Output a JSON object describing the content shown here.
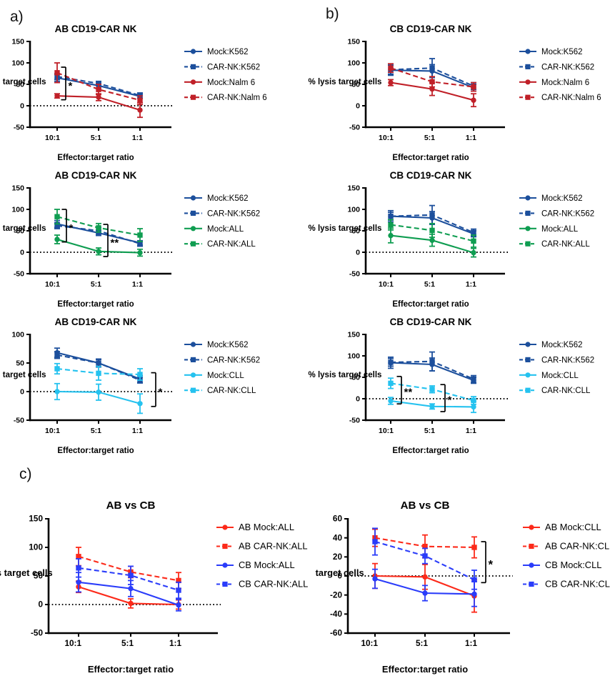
{
  "panels": [
    {
      "id": "a",
      "label": "a)"
    },
    {
      "id": "b",
      "label": "b)"
    },
    {
      "id": "c",
      "label": "c)"
    }
  ],
  "colors": {
    "navy": "#1C4F9C",
    "crimson": "#C02028",
    "green": "#0F9D51",
    "cyan": "#25C2EF",
    "red": "#FC2A1A",
    "blue": "#2A3CFA",
    "axis": "#000000"
  },
  "chart_data": [
    {
      "id": "a1",
      "type": "line",
      "title": "AB CD19-CAR NK",
      "xlabel": "Effector:target ratio",
      "ylabel": "% lysis target cells",
      "categories": [
        "10:1",
        "5:1",
        "1:1"
      ],
      "ylim": [
        -50,
        150
      ],
      "yticks": [
        150,
        100,
        50,
        0,
        -50
      ],
      "zero_line": true,
      "legend_position": "right",
      "series": [
        {
          "name": "Mock:K562",
          "color": "navy",
          "style": "solid",
          "marker": "circle",
          "values": [
            65,
            47,
            22
          ],
          "errors": [
            8,
            6,
            5
          ]
        },
        {
          "name": "CAR-NK:K562",
          "color": "navy",
          "style": "dashed",
          "marker": "square",
          "values": [
            68,
            52,
            24
          ],
          "errors": [
            7,
            5,
            6
          ]
        },
        {
          "name": "Mock:Nalm 6",
          "color": "crimson",
          "style": "solid",
          "marker": "circle",
          "values": [
            23,
            20,
            -10
          ],
          "errors": [
            5,
            8,
            17
          ]
        },
        {
          "name": "CAR-NK:Nalm 6",
          "color": "crimson",
          "style": "dashed",
          "marker": "square",
          "values": [
            77,
            38,
            13
          ],
          "errors": [
            23,
            12,
            10
          ]
        }
      ],
      "significance": [
        {
          "label": "*",
          "cat": 0,
          "dx": 12,
          "top": 90,
          "bottom": 14
        }
      ]
    },
    {
      "id": "a2",
      "type": "line",
      "title": "AB CD19-CAR NK",
      "xlabel": "Effector:target ratio",
      "ylabel": "% lysis target cells",
      "categories": [
        "10:1",
        "5:1",
        "1:1"
      ],
      "ylim": [
        -50,
        150
      ],
      "yticks": [
        150,
        100,
        50,
        0,
        -50
      ],
      "zero_line": true,
      "legend_position": "right",
      "series": [
        {
          "name": "Mock:K562",
          "color": "navy",
          "style": "solid",
          "marker": "circle",
          "values": [
            66,
            45,
            22
          ],
          "errors": [
            8,
            6,
            5
          ]
        },
        {
          "name": "CAR-NK:K562",
          "color": "navy",
          "style": "dashed",
          "marker": "square",
          "values": [
            62,
            50,
            20
          ],
          "errors": [
            7,
            8,
            6
          ]
        },
        {
          "name": "Mock:ALL",
          "color": "green",
          "style": "solid",
          "marker": "circle",
          "values": [
            30,
            2,
            -1
          ],
          "errors": [
            10,
            8,
            8
          ]
        },
        {
          "name": "CAR-NK:ALL",
          "color": "green",
          "style": "dashed",
          "marker": "square",
          "values": [
            83,
            57,
            40
          ],
          "errors": [
            17,
            10,
            15
          ]
        }
      ],
      "significance": [
        {
          "label": "*",
          "cat": 0,
          "dx": 13,
          "top": 100,
          "bottom": 24
        },
        {
          "label": "**",
          "cat": 1,
          "dx": 13,
          "top": 65,
          "bottom": -10
        }
      ]
    },
    {
      "id": "a3",
      "type": "line",
      "title": "AB CD19-CAR NK",
      "xlabel": "Effector:target ratio",
      "ylabel": "% lysis target cells",
      "categories": [
        "10:1",
        "5:1",
        "1:1"
      ],
      "ylim": [
        -50,
        100
      ],
      "yticks": [
        100,
        50,
        0,
        -50
      ],
      "zero_line": true,
      "legend_position": "right",
      "series": [
        {
          "name": "Mock:K562",
          "color": "navy",
          "style": "solid",
          "marker": "circle",
          "values": [
            68,
            50,
            22
          ],
          "errors": [
            8,
            6,
            6
          ]
        },
        {
          "name": "CAR-NK:K562",
          "color": "navy",
          "style": "dashed",
          "marker": "square",
          "values": [
            64,
            50,
            20
          ],
          "errors": [
            6,
            7,
            5
          ]
        },
        {
          "name": "Mock:CLL",
          "color": "cyan",
          "style": "solid",
          "marker": "circle",
          "values": [
            0,
            -1,
            -21
          ],
          "errors": [
            14,
            14,
            17
          ]
        },
        {
          "name": "CAR-NK:CLL",
          "color": "cyan",
          "style": "dashed",
          "marker": "square",
          "values": [
            40,
            32,
            30
          ],
          "errors": [
            9,
            12,
            10
          ]
        }
      ],
      "significance": [
        {
          "label": "*",
          "cat": 2,
          "dx": 22,
          "top": 33,
          "bottom": -26
        }
      ]
    },
    {
      "id": "b1",
      "type": "line",
      "title": "CB CD19-CAR NK",
      "xlabel": "Effector:target ratio",
      "ylabel": "% lysis target cells",
      "categories": [
        "10:1",
        "5:1",
        "1:1"
      ],
      "ylim": [
        -50,
        150
      ],
      "yticks": [
        150,
        100,
        50,
        0,
        -50
      ],
      "zero_line": false,
      "legend_position": "right",
      "series": [
        {
          "name": "Mock:K562",
          "color": "navy",
          "style": "solid",
          "marker": "circle",
          "values": [
            83,
            81,
            42
          ],
          "errors": [
            12,
            15,
            8
          ]
        },
        {
          "name": "CAR-NK:K562",
          "color": "navy",
          "style": "dashed",
          "marker": "square",
          "values": [
            84,
            88,
            46
          ],
          "errors": [
            10,
            22,
            8
          ]
        },
        {
          "name": "Mock:Nalm 6",
          "color": "crimson",
          "style": "solid",
          "marker": "circle",
          "values": [
            54,
            39,
            13
          ],
          "errors": [
            7,
            15,
            15
          ]
        },
        {
          "name": "CAR-NK:Nalm 6",
          "color": "crimson",
          "style": "dashed",
          "marker": "square",
          "values": [
            88,
            56,
            44
          ],
          "errors": [
            10,
            12,
            10
          ]
        }
      ],
      "significance": []
    },
    {
      "id": "b2",
      "type": "line",
      "title": "CB CD19-CAR NK",
      "xlabel": "Effector:target ratio",
      "ylabel": "% lysis target cells",
      "categories": [
        "10:1",
        "5:1",
        "1:1"
      ],
      "ylim": [
        -50,
        150
      ],
      "yticks": [
        150,
        100,
        50,
        0,
        -50
      ],
      "zero_line": true,
      "legend_position": "right",
      "series": [
        {
          "name": "Mock:K562",
          "color": "navy",
          "style": "solid",
          "marker": "circle",
          "values": [
            84,
            80,
            43
          ],
          "errors": [
            13,
            15,
            7
          ]
        },
        {
          "name": "CAR-NK:K562",
          "color": "navy",
          "style": "dashed",
          "marker": "square",
          "values": [
            84,
            87,
            46
          ],
          "errors": [
            9,
            22,
            8
          ]
        },
        {
          "name": "Mock:ALL",
          "color": "green",
          "style": "solid",
          "marker": "circle",
          "values": [
            39,
            28,
            -1
          ],
          "errors": [
            17,
            14,
            10
          ]
        },
        {
          "name": "CAR-NK:ALL",
          "color": "green",
          "style": "dashed",
          "marker": "square",
          "values": [
            64,
            51,
            26
          ],
          "errors": [
            12,
            16,
            14
          ]
        }
      ],
      "significance": []
    },
    {
      "id": "b3",
      "type": "line",
      "title": "CB CD19-CAR NK",
      "xlabel": "Effector:target ratio",
      "ylabel": "% lysis target cells",
      "categories": [
        "10:1",
        "5:1",
        "1:1"
      ],
      "ylim": [
        -50,
        150
      ],
      "yticks": [
        150,
        100,
        50,
        0,
        -50
      ],
      "zero_line": true,
      "legend_position": "right",
      "series": [
        {
          "name": "Mock:K562",
          "color": "navy",
          "style": "solid",
          "marker": "circle",
          "values": [
            84,
            80,
            43
          ],
          "errors": [
            13,
            15,
            7
          ]
        },
        {
          "name": "CAR-NK:K562",
          "color": "navy",
          "style": "dashed",
          "marker": "square",
          "values": [
            85,
            87,
            46
          ],
          "errors": [
            9,
            22,
            8
          ]
        },
        {
          "name": "Mock:CLL",
          "color": "cyan",
          "style": "solid",
          "marker": "circle",
          "values": [
            -5,
            -18,
            -19
          ],
          "errors": [
            8,
            6,
            13
          ]
        },
        {
          "name": "CAR-NK:CLL",
          "color": "cyan",
          "style": "dashed",
          "marker": "square",
          "values": [
            36,
            22,
            -4
          ],
          "errors": [
            12,
            8,
            9
          ]
        }
      ],
      "significance": [
        {
          "label": "**",
          "cat": 0,
          "dx": 15,
          "top": 52,
          "bottom": -12
        },
        {
          "label": "*",
          "cat": 1,
          "dx": 18,
          "top": 33,
          "bottom": -30
        }
      ]
    },
    {
      "id": "c1",
      "type": "line",
      "title": "AB vs CB",
      "xlabel": "Effector:target ratio",
      "ylabel": "% lysis target cells",
      "categories": [
        "10:1",
        "5:1",
        "1:1"
      ],
      "ylim": [
        -50,
        150
      ],
      "yticks": [
        150,
        100,
        50,
        0,
        -50
      ],
      "zero_line": true,
      "legend_position": "right",
      "series": [
        {
          "name": "AB Mock:ALL",
          "color": "red",
          "style": "solid",
          "marker": "circle",
          "values": [
            31,
            2,
            0
          ],
          "errors": [
            10,
            8,
            8
          ]
        },
        {
          "name": "AB CAR-NK:ALL",
          "color": "red",
          "style": "dashed",
          "marker": "square",
          "values": [
            84,
            57,
            42
          ],
          "errors": [
            16,
            10,
            14
          ]
        },
        {
          "name": "CB Mock:ALL",
          "color": "blue",
          "style": "solid",
          "marker": "circle",
          "values": [
            39,
            28,
            -1
          ],
          "errors": [
            17,
            14,
            10
          ]
        },
        {
          "name": "CB CAR-NK:ALL",
          "color": "blue",
          "style": "dashed",
          "marker": "square",
          "values": [
            64,
            51,
            25
          ],
          "errors": [
            16,
            16,
            14
          ]
        }
      ],
      "significance": []
    },
    {
      "id": "c2",
      "type": "line",
      "title": "AB vs CB",
      "xlabel": "Effector:target ratio",
      "ylabel": "% lysis target cells",
      "categories": [
        "10:1",
        "5:1",
        "1:1"
      ],
      "ylim": [
        -60,
        60
      ],
      "yticks": [
        60,
        40,
        20,
        0,
        -20,
        -40,
        -60
      ],
      "zero_line": true,
      "legend_position": "right",
      "series": [
        {
          "name": "AB Mock:CLL",
          "color": "red",
          "style": "solid",
          "marker": "circle",
          "values": [
            0,
            -1,
            -21
          ],
          "errors": [
            13,
            13,
            17
          ]
        },
        {
          "name": "AB CAR-NK:CLL",
          "color": "red",
          "style": "dashed",
          "marker": "square",
          "values": [
            40,
            31,
            30
          ],
          "errors": [
            9,
            12,
            11
          ]
        },
        {
          "name": "CB Mock:CLL",
          "color": "blue",
          "style": "solid",
          "marker": "circle",
          "values": [
            -3,
            -18,
            -19
          ],
          "errors": [
            10,
            8,
            13
          ]
        },
        {
          "name": "CB CAR-NK:CLL",
          "color": "blue",
          "style": "dashed",
          "marker": "square",
          "values": [
            36,
            21,
            -4
          ],
          "errors": [
            14,
            8,
            10
          ]
        }
      ],
      "significance": [
        {
          "label": "*",
          "cat": 2,
          "dx": 16,
          "top": 36,
          "bottom": -7
        }
      ]
    }
  ]
}
